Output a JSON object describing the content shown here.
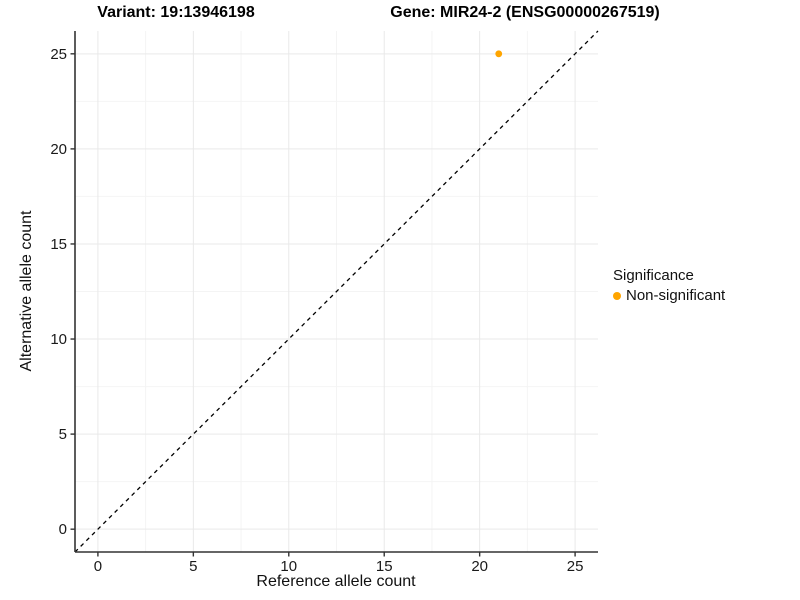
{
  "titles": {
    "variant": "Variant: 19:13946198",
    "gene": "Gene: MIR24-2 (ENSG00000267519)"
  },
  "legend": {
    "title": "Significance",
    "entries": [
      {
        "label": "Non-significant",
        "color": "#FFA500"
      }
    ]
  },
  "colors": {
    "point": "#FFA500",
    "axis_line": "#333333",
    "tick_mark": "#333333",
    "tick_label": "#1a1a1a",
    "grid_major": "#e9e9e9",
    "grid_minor": "#f4f4f4",
    "identity_line": "#000000",
    "background": "#ffffff"
  },
  "chart_data": {
    "type": "scatter",
    "title": "Variant: 19:13946198   Gene: MIR24-2 (ENSG00000267519)",
    "xlabel": "Reference allele count",
    "ylabel": "Alternative allele count",
    "xlim": [
      -1.2,
      26.2
    ],
    "ylim": [
      -1.2,
      26.2
    ],
    "x_ticks": [
      0,
      5,
      10,
      15,
      20,
      25
    ],
    "y_ticks": [
      0,
      5,
      10,
      15,
      20,
      25
    ],
    "x_minor": [
      2.5,
      7.5,
      12.5,
      17.5,
      22.5
    ],
    "y_minor": [
      2.5,
      7.5,
      12.5,
      17.5,
      22.5
    ],
    "grid": true,
    "legend_position": "right",
    "series": [
      {
        "name": "Non-significant",
        "color": "#FFA500",
        "points": [
          {
            "x": 21,
            "y": 25
          }
        ]
      }
    ],
    "reference_line": {
      "kind": "identity",
      "slope": 1,
      "intercept": 0,
      "style": "dashed",
      "color": "#000000"
    }
  }
}
